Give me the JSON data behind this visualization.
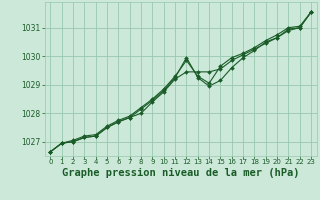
{
  "bg_color": "#cce8d8",
  "grid_color": "#99c8b0",
  "line_color": "#1a5c28",
  "marker_color": "#1a5c28",
  "xlabel": "Graphe pression niveau de la mer (hPa)",
  "xlabel_fontsize": 7.5,
  "xlim": [
    -0.5,
    23.5
  ],
  "ylim": [
    1026.5,
    1031.9
  ],
  "yticks": [
    1027,
    1028,
    1029,
    1030,
    1031
  ],
  "xticks": [
    0,
    1,
    2,
    3,
    4,
    5,
    6,
    7,
    8,
    9,
    10,
    11,
    12,
    13,
    14,
    15,
    16,
    17,
    18,
    19,
    20,
    21,
    22,
    23
  ],
  "series": [
    [
      1026.65,
      1026.95,
      1027.0,
      1027.15,
      1027.2,
      1027.5,
      1027.7,
      1027.85,
      1028.0,
      1028.4,
      1028.75,
      1029.2,
      1029.45,
      1029.45,
      1029.45,
      1029.55,
      1029.85,
      1030.05,
      1030.25,
      1030.45,
      1030.65,
      1030.9,
      1031.0,
      1031.55
    ],
    [
      1026.65,
      1026.95,
      1027.0,
      1027.15,
      1027.2,
      1027.5,
      1027.7,
      1027.85,
      1028.15,
      1028.45,
      1028.8,
      1029.25,
      1029.95,
      1029.25,
      1028.95,
      1029.15,
      1029.6,
      1029.95,
      1030.2,
      1030.5,
      1030.65,
      1030.95,
      1031.0,
      1031.55
    ],
    [
      1026.65,
      1026.95,
      1027.05,
      1027.2,
      1027.25,
      1027.55,
      1027.75,
      1027.9,
      1028.2,
      1028.5,
      1028.85,
      1029.3,
      1029.85,
      1029.3,
      1029.05,
      1029.65,
      1029.95,
      1030.1,
      1030.3,
      1030.55,
      1030.75,
      1031.0,
      1031.05,
      1031.55
    ]
  ]
}
